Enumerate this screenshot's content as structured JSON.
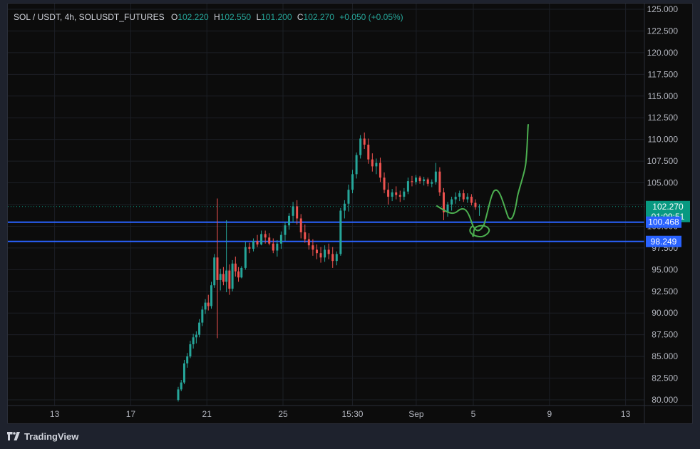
{
  "header": {
    "symbol": "SOL / USDT, 4h, SOLUSDT_FUTURES",
    "o_label": "O",
    "o_value": "102.220",
    "h_label": "H",
    "h_value": "102.550",
    "l_label": "L",
    "l_value": "101.200",
    "c_label": "C",
    "c_value": "102.270",
    "change": "+0.050 (+0.05%)"
  },
  "footer": {
    "brand": "TradingView"
  },
  "colors": {
    "up": "#26a69a",
    "down": "#ef5350",
    "level": "#2962ff",
    "drawing": "#4caf50",
    "price_badge": "#089981",
    "text": "#b2b5be"
  },
  "chart_data": {
    "type": "candlestick",
    "y_axis": {
      "min": 80,
      "max": 125,
      "step": 2.5,
      "tick_labels": [
        "125.000",
        "122.500",
        "120.000",
        "117.500",
        "115.000",
        "112.500",
        "110.000",
        "107.500",
        "105.000",
        "102.500",
        "100.000",
        "97.500",
        "95.000",
        "92.500",
        "90.000",
        "87.500",
        "85.000",
        "82.500",
        "80.000"
      ]
    },
    "x_axis": {
      "tick_labels": [
        "13",
        "17",
        "21",
        "25",
        "15:30",
        "Sep",
        "5",
        "9",
        "13"
      ],
      "tick_positions_days": [
        -12,
        -8,
        -4,
        0,
        3.65,
        7,
        10,
        14,
        18
      ]
    },
    "current_price": {
      "value": 102.27,
      "label": "102.270",
      "countdown": "01:09:51"
    },
    "levels": [
      {
        "value": 100.468,
        "label": "100.468"
      },
      {
        "value": 98.249,
        "label": "98.249"
      }
    ],
    "hidden_label": "97.500",
    "candles": [
      [
        94.1,
        95.4,
        94.0,
        95.2
      ],
      [
        95.2,
        98.2,
        95.0,
        97.6
      ],
      [
        97.6,
        98.1,
        96.9,
        97.4
      ],
      [
        97.4,
        98.6,
        97.1,
        98.3
      ],
      [
        98.3,
        99.0,
        97.6,
        97.9
      ],
      [
        97.9,
        99.5,
        97.8,
        99.1
      ],
      [
        99.1,
        99.5,
        98.0,
        98.7
      ],
      [
        98.7,
        99.2,
        97.8,
        98.0
      ],
      [
        98.0,
        98.6,
        96.9,
        97.2
      ],
      [
        97.2,
        98.4,
        96.5,
        98.0
      ],
      [
        98.0,
        99.4,
        97.4,
        99.0
      ],
      [
        99.0,
        100.5,
        98.3,
        100.1
      ],
      [
        100.1,
        101.5,
        99.6,
        101.2
      ],
      [
        101.2,
        102.8,
        100.4,
        102.3
      ],
      [
        102.3,
        103.0,
        100.2,
        100.9
      ],
      [
        100.9,
        101.4,
        98.6,
        99.3
      ],
      [
        99.3,
        100.2,
        98.1,
        98.5
      ],
      [
        98.5,
        99.2,
        97.3,
        97.8
      ],
      [
        97.8,
        98.5,
        96.6,
        97.3
      ],
      [
        97.3,
        97.9,
        96.2,
        96.9
      ],
      [
        96.9,
        97.6,
        95.8,
        96.4
      ],
      [
        96.4,
        97.8,
        95.9,
        97.3
      ],
      [
        97.3,
        98.0,
        96.2,
        96.8
      ],
      [
        96.8,
        97.6,
        95.2,
        96.0
      ],
      [
        96.0,
        97.1,
        95.5,
        96.8
      ],
      [
        96.8,
        102.1,
        96.6,
        101.8
      ],
      [
        101.8,
        103.0,
        100.9,
        102.6
      ],
      [
        102.6,
        104.8,
        101.7,
        104.2
      ],
      [
        104.2,
        106.5,
        103.8,
        106.0
      ],
      [
        106.0,
        108.5,
        105.5,
        108.2
      ],
      [
        108.2,
        110.5,
        107.8,
        110.1
      ],
      [
        110.1,
        110.8,
        108.9,
        109.4
      ],
      [
        109.4,
        110.1,
        107.2,
        107.7
      ],
      [
        107.7,
        108.4,
        106.3,
        106.9
      ],
      [
        106.9,
        107.8,
        106.0,
        107.3
      ],
      [
        107.3,
        107.9,
        105.1,
        105.6
      ],
      [
        105.6,
        106.2,
        103.8,
        104.2
      ],
      [
        104.2,
        105.0,
        102.5,
        103.4
      ],
      [
        103.4,
        104.3,
        102.9,
        103.9
      ],
      [
        103.9,
        104.6,
        103.1,
        103.6
      ],
      [
        103.6,
        104.1,
        102.8,
        103.4
      ],
      [
        103.4,
        104.4,
        103.0,
        104.0
      ],
      [
        104.0,
        105.6,
        103.7,
        105.2
      ],
      [
        105.2,
        105.8,
        104.6,
        105.1
      ],
      [
        105.1,
        105.9,
        104.8,
        105.6
      ],
      [
        105.6,
        105.8,
        104.9,
        105.2
      ],
      [
        105.2,
        105.7,
        104.7,
        105.4
      ],
      [
        105.4,
        105.6,
        104.6,
        104.9
      ],
      [
        104.9,
        105.4,
        104.5,
        105.1
      ],
      [
        105.1,
        107.3,
        104.8,
        106.3
      ],
      [
        106.3,
        106.8,
        103.5,
        103.9
      ],
      [
        103.9,
        104.4,
        100.7,
        101.6
      ],
      [
        101.6,
        102.8,
        101.1,
        102.5
      ],
      [
        102.5,
        103.4,
        101.8,
        103.1
      ],
      [
        103.1,
        103.9,
        102.6,
        103.4
      ],
      [
        103.4,
        104.1,
        102.9,
        103.8
      ],
      [
        103.8,
        104.2,
        102.8,
        103.1
      ],
      [
        103.1,
        103.8,
        102.7,
        103.4
      ],
      [
        103.4,
        103.7,
        102.4,
        102.7
      ],
      [
        102.7,
        103.1,
        101.9,
        102.2
      ],
      [
        102.2,
        102.55,
        101.2,
        102.27
      ]
    ],
    "early_candles": [
      [
        80.0,
        81.5,
        79.8,
        81.2
      ],
      [
        81.2,
        82.3,
        81.0,
        82.0
      ],
      [
        82.0,
        84.6,
        81.8,
        84.2
      ],
      [
        84.2,
        85.4,
        83.7,
        85.0
      ],
      [
        85.0,
        86.8,
        84.8,
        86.4
      ],
      [
        86.4,
        87.6,
        85.9,
        87.2
      ],
      [
        87.2,
        87.9,
        86.5,
        87.5
      ],
      [
        87.5,
        89.3,
        87.2,
        88.9
      ],
      [
        88.9,
        90.8,
        88.5,
        90.4
      ],
      [
        90.4,
        91.6,
        89.9,
        91.2
      ],
      [
        91.2,
        92.1,
        90.3,
        90.8
      ],
      [
        90.8,
        93.6,
        90.5,
        93.2
      ],
      [
        93.2,
        96.8,
        92.9,
        96.4
      ],
      [
        96.4,
        103.2,
        87.1,
        93.8
      ],
      [
        93.8,
        95.1,
        92.6,
        94.5
      ],
      [
        94.5,
        95.3,
        93.2,
        93.6
      ],
      [
        93.6,
        100.7,
        92.4,
        94.9
      ],
      [
        94.9,
        95.6,
        92.1,
        92.8
      ],
      [
        92.8,
        96.1,
        92.5,
        95.7
      ],
      [
        95.7,
        96.5,
        94.2,
        94.8
      ],
      [
        94.8,
        95.3,
        93.6,
        94.1
      ]
    ]
  }
}
